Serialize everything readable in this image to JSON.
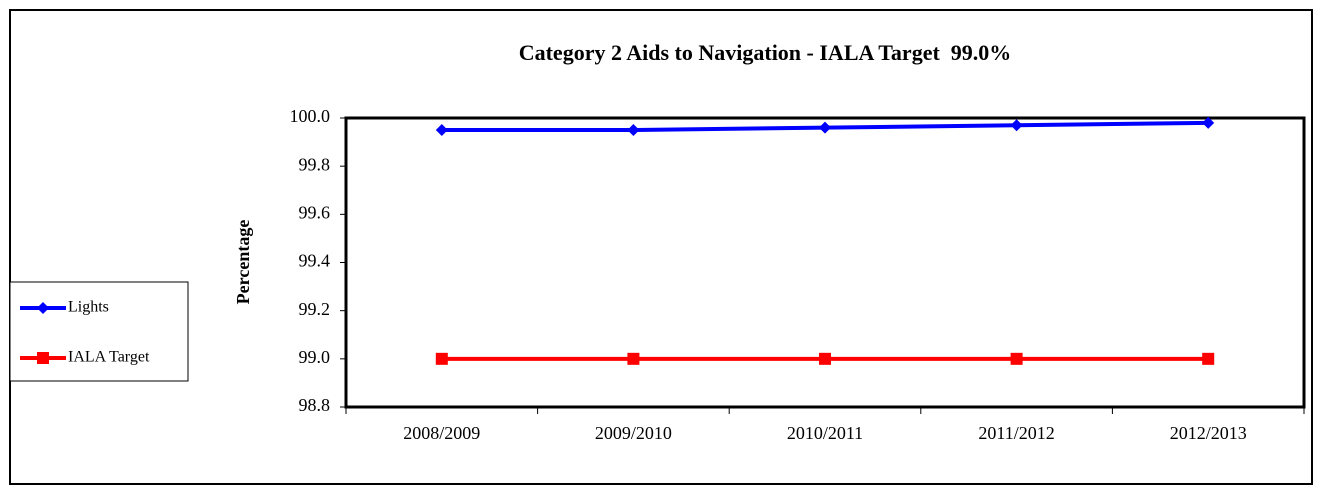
{
  "chart_data": {
    "type": "line",
    "title": "Category 2 Aids to Navigation - IALA Target  99.0%",
    "y_label": "Percentage",
    "categories": [
      "2008/2009",
      "2009/2010",
      "2010/2011",
      "2011/2012",
      "2012/2013"
    ],
    "series": [
      {
        "name": "Lights",
        "color": "#0000ff",
        "marker": "diamond",
        "values": [
          99.95,
          99.95,
          99.96,
          99.97,
          99.98
        ]
      },
      {
        "name": "IALA Target",
        "color": "#ff0000",
        "marker": "square",
        "values": [
          99.0,
          99.0,
          99.0,
          99.0,
          99.0
        ]
      }
    ],
    "ylim": [
      98.8,
      100.0
    ],
    "yticks": [
      98.8,
      {
        "value": 99.0,
        "label": "99.0"
      },
      99.2,
      99.4,
      99.6,
      99.8,
      {
        "value": 100.0,
        "label": "100.0"
      }
    ],
    "grid": false,
    "legend": "left"
  }
}
